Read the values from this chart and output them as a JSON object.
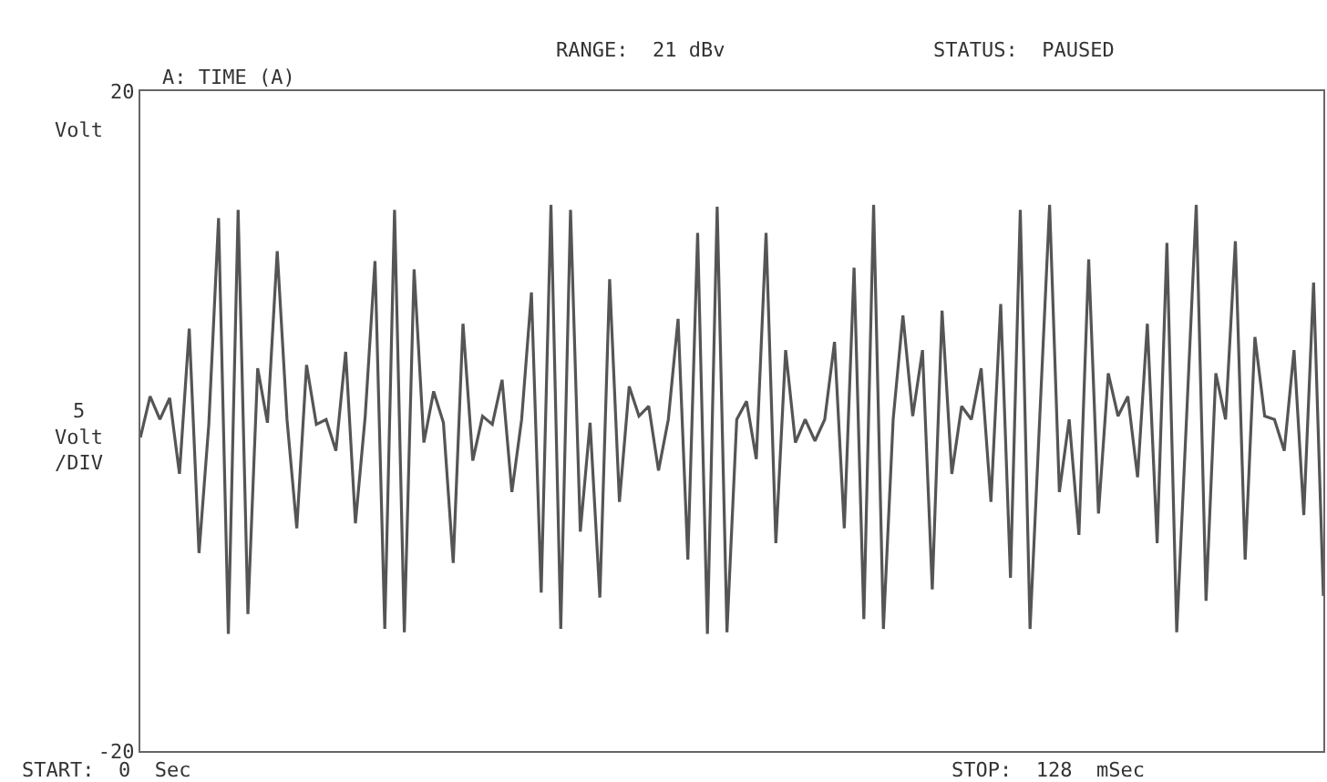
{
  "chart_data": {
    "type": "line",
    "ylabel": "Volt",
    "annotations": [
      "A: TIME (A)",
      "RANGE:  21 dBv",
      "STATUS:  PAUSED",
      "5\nVolt\n/DIV",
      "START:  0  Sec",
      "STOP:  128  mSec"
    ],
    "categories": [
      null,
      null,
      null,
      null,
      null,
      null,
      null,
      null,
      null,
      null,
      null,
      null,
      null,
      null,
      null,
      null,
      null,
      null,
      null,
      null,
      null,
      null,
      null,
      null,
      null,
      null,
      null,
      null,
      null,
      null,
      null,
      null,
      null,
      null,
      null,
      null,
      null,
      null,
      null,
      null,
      null,
      null,
      null,
      null,
      null,
      null,
      null,
      null,
      null,
      null,
      null,
      null,
      null,
      null,
      null,
      null,
      null,
      null,
      null,
      null,
      null,
      null,
      null,
      null,
      null,
      null,
      null,
      null,
      null,
      null,
      null,
      null,
      null,
      null,
      null,
      null,
      null,
      null,
      null,
      null,
      null,
      null,
      null,
      null,
      null,
      null,
      null,
      null,
      null,
      null,
      null,
      null,
      null,
      null,
      null,
      null,
      null,
      null,
      null,
      null,
      null,
      null,
      null,
      null,
      null,
      null,
      null,
      null,
      null,
      null,
      null,
      null,
      null,
      null,
      null,
      null,
      null,
      null,
      null,
      null,
      null,
      null
    ],
    "series": [
      {
        "color": "#555555",
        "values": [
          -1.0,
          1.5,
          0.1,
          1.4,
          -3.2,
          5.6,
          -8.0,
          -0.2,
          12.3,
          -12.9,
          12.8,
          -11.7,
          3.2,
          -0.1,
          10.3,
          0.1,
          -6.5,
          3.4,
          -0.2,
          0.1,
          -1.8,
          4.2,
          -6.2,
          0.3,
          9.7,
          -12.6,
          12.8,
          -12.8,
          9.2,
          -1.3,
          1.8,
          -0.1,
          -8.6,
          5.9,
          -2.4,
          0.3,
          -0.2,
          2.5,
          -4.3,
          0.1,
          7.8,
          -10.4,
          13.1,
          -12.6,
          12.8,
          -6.7,
          -0.1,
          -10.7,
          8.6,
          -4.9,
          2.1,
          0.3,
          0.9,
          -3.0,
          0.1,
          6.2,
          -8.4,
          11.4,
          -12.9,
          13.0,
          -12.8,
          0.1,
          1.2,
          -2.3,
          11.4,
          -7.4,
          4.3,
          -1.3,
          0.1,
          -1.2,
          0.1,
          4.8,
          -6.5,
          9.3,
          -12.0,
          13.1,
          -12.6,
          0.1,
          6.4,
          0.3,
          4.3,
          -10.2,
          6.7,
          -3.2,
          0.9,
          0.1,
          3.2,
          -4.9,
          7.1,
          -9.5,
          12.8,
          -12.6,
          0.3,
          13.1,
          -4.3,
          0.1,
          -6.9,
          9.8,
          -5.6,
          2.9,
          0.3,
          1.5,
          -3.4,
          5.9,
          -7.4,
          10.8,
          -12.8,
          0.1,
          13.1,
          -10.9,
          2.9,
          0.1,
          10.9,
          -8.4,
          5.1,
          0.3,
          0.1,
          -1.8,
          4.3,
          -5.7,
          8.4,
          -10.6
        ]
      }
    ],
    "ylim": [
      -20,
      20
    ],
    "yticks": [
      20,
      -20
    ],
    "tick_labels": "y",
    "grid": false,
    "marker": "none",
    "line_style": "solid"
  }
}
